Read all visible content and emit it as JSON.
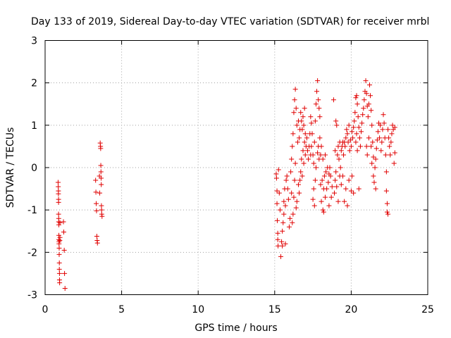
{
  "chart_data": {
    "type": "scatter",
    "title": "Day 133 of 2019, Sidereal Day-to-day VTEC variation (SDTVAR) for receiver mrbl",
    "xlabel": "GPS time / hours",
    "ylabel": "SDTVAR / TECUs",
    "xlim": [
      0,
      25
    ],
    "ylim": [
      -3,
      3
    ],
    "xticks": [
      "0",
      "5",
      "10",
      "15",
      "20",
      "25"
    ],
    "yticks": [
      "-3",
      "-2",
      "-1",
      "0",
      "1",
      "2",
      "3"
    ],
    "grid": true,
    "marker": "+",
    "color": "#e00000",
    "series": [
      {
        "name": "SDTVAR",
        "points": [
          [
            0.85,
            -0.35
          ],
          [
            0.86,
            -0.45
          ],
          [
            0.87,
            -0.55
          ],
          [
            0.87,
            -0.62
          ],
          [
            0.88,
            -0.75
          ],
          [
            0.88,
            -0.82
          ],
          [
            0.88,
            -1.1
          ],
          [
            0.89,
            -1.2
          ],
          [
            0.89,
            -1.28
          ],
          [
            0.9,
            -1.35
          ],
          [
            0.9,
            -1.6
          ],
          [
            0.9,
            -1.7
          ],
          [
            0.91,
            -1.75
          ],
          [
            0.91,
            -1.8
          ],
          [
            0.92,
            -1.9
          ],
          [
            0.92,
            -2.05
          ],
          [
            0.93,
            -2.25
          ],
          [
            0.93,
            -2.4
          ],
          [
            0.94,
            -2.5
          ],
          [
            0.94,
            -2.65
          ],
          [
            0.95,
            -2.72
          ],
          [
            0.96,
            -1.72
          ],
          [
            0.97,
            -1.65
          ],
          [
            0.97,
            -1.3
          ],
          [
            1.2,
            -1.28
          ],
          [
            1.22,
            -1.52
          ],
          [
            1.25,
            -1.95
          ],
          [
            1.27,
            -2.5
          ],
          [
            1.3,
            -2.85
          ],
          [
            3.3,
            -0.3
          ],
          [
            3.32,
            -0.58
          ],
          [
            3.34,
            -0.85
          ],
          [
            3.36,
            -1.02
          ],
          [
            3.38,
            -1.62
          ],
          [
            3.4,
            -1.72
          ],
          [
            3.42,
            -1.78
          ],
          [
            3.6,
            0.58
          ],
          [
            3.62,
            0.5
          ],
          [
            3.63,
            0.45
          ],
          [
            3.64,
            0.05
          ],
          [
            3.65,
            -0.1
          ],
          [
            3.66,
            -0.25
          ],
          [
            3.67,
            -0.4
          ],
          [
            3.68,
            -0.9
          ],
          [
            3.69,
            -1.0
          ],
          [
            3.7,
            -1.1
          ],
          [
            3.72,
            -1.15
          ],
          [
            3.55,
            -0.2
          ],
          [
            3.57,
            -0.6
          ],
          [
            15.1,
            -0.15
          ],
          [
            15.12,
            -0.25
          ],
          [
            15.15,
            -0.55
          ],
          [
            15.15,
            -0.85
          ],
          [
            15.17,
            -1.25
          ],
          [
            15.2,
            -1.55
          ],
          [
            15.2,
            -1.7
          ],
          [
            15.22,
            -1.85
          ],
          [
            15.25,
            -0.05
          ],
          [
            15.3,
            -0.6
          ],
          [
            15.35,
            -1.0
          ],
          [
            15.4,
            -2.1
          ],
          [
            15.45,
            -1.75
          ],
          [
            15.5,
            -1.5
          ],
          [
            15.5,
            -1.85
          ],
          [
            15.55,
            -1.3
          ],
          [
            15.6,
            -1.1
          ],
          [
            15.6,
            -0.8
          ],
          [
            15.65,
            -0.5
          ],
          [
            15.7,
            -0.9
          ],
          [
            15.7,
            -1.8
          ],
          [
            15.75,
            -0.3
          ],
          [
            15.8,
            -0.2
          ],
          [
            15.85,
            -0.5
          ],
          [
            15.9,
            -0.75
          ],
          [
            15.95,
            -1.4
          ],
          [
            16.0,
            -1.2
          ],
          [
            16.05,
            -0.1
          ],
          [
            16.1,
            0.2
          ],
          [
            16.1,
            -0.6
          ],
          [
            16.15,
            0.5
          ],
          [
            16.15,
            -1.3
          ],
          [
            16.2,
            0.8
          ],
          [
            16.2,
            -1.1
          ],
          [
            16.25,
            1.3
          ],
          [
            16.25,
            -0.7
          ],
          [
            16.3,
            1.6
          ],
          [
            16.3,
            -0.3
          ],
          [
            16.35,
            1.85
          ],
          [
            16.35,
            0.1
          ],
          [
            16.4,
            1.4
          ],
          [
            16.4,
            -0.95
          ],
          [
            16.45,
            1.0
          ],
          [
            16.45,
            -0.8
          ],
          [
            16.5,
            0.6
          ],
          [
            16.55,
            1.1
          ],
          [
            16.55,
            -0.4
          ],
          [
            16.6,
            0.7
          ],
          [
            16.6,
            -0.6
          ],
          [
            16.65,
            0.9
          ],
          [
            16.65,
            -0.3
          ],
          [
            16.7,
            1.3
          ],
          [
            16.7,
            -0.1
          ],
          [
            16.75,
            1.1
          ],
          [
            16.75,
            0.2
          ],
          [
            16.8,
            0.9
          ],
          [
            16.8,
            -0.2
          ],
          [
            16.85,
            1.2
          ],
          [
            16.85,
            0.4
          ],
          [
            16.9,
            1.0
          ],
          [
            16.9,
            0.1
          ],
          [
            16.95,
            1.4
          ],
          [
            16.95,
            0.6
          ],
          [
            17.0,
            0.8
          ],
          [
            17.0,
            0.3
          ],
          [
            17.05,
            0.5
          ],
          [
            17.1,
            0.7
          ],
          [
            17.15,
            0.4
          ],
          [
            17.2,
            0.2
          ],
          [
            17.25,
            0.5
          ],
          [
            17.3,
            0.8
          ],
          [
            17.35,
            1.2
          ],
          [
            17.35,
            0.3
          ],
          [
            17.4,
            1.05
          ],
          [
            17.4,
            0.5
          ],
          [
            17.45,
            0.8
          ],
          [
            17.5,
            0.3
          ],
          [
            17.5,
            -0.75
          ],
          [
            17.55,
            0.1
          ],
          [
            17.55,
            -0.5
          ],
          [
            17.6,
            0.6
          ],
          [
            17.6,
            -0.9
          ],
          [
            17.65,
            1.1
          ],
          [
            17.65,
            -0.3
          ],
          [
            17.7,
            1.5
          ],
          [
            17.7,
            0.0
          ],
          [
            17.75,
            1.8
          ],
          [
            17.8,
            2.05
          ],
          [
            17.8,
            0.35
          ],
          [
            17.85,
            1.6
          ],
          [
            17.85,
            0.5
          ],
          [
            17.9,
            1.4
          ],
          [
            17.9,
            0.2
          ],
          [
            17.95,
            1.2
          ],
          [
            17.95,
            0.7
          ],
          [
            18.0,
            0.3
          ],
          [
            18.0,
            -0.4
          ],
          [
            18.05,
            0.5
          ],
          [
            18.05,
            -0.8
          ],
          [
            18.1,
            -0.3
          ],
          [
            18.15,
            0.2
          ],
          [
            18.15,
            -1.0
          ],
          [
            18.2,
            -0.5
          ],
          [
            18.2,
            -1.05
          ],
          [
            18.25,
            -0.2
          ],
          [
            18.3,
            0.3
          ],
          [
            18.3,
            -0.7
          ],
          [
            18.35,
            -0.1
          ],
          [
            18.4,
            -0.5
          ],
          [
            18.45,
            0.0
          ],
          [
            18.5,
            -0.35
          ],
          [
            18.55,
            -0.9
          ],
          [
            18.55,
            -0.15
          ],
          [
            18.6,
            0.0
          ],
          [
            18.65,
            -0.2
          ],
          [
            18.7,
            -0.7
          ],
          [
            18.75,
            -0.45
          ],
          [
            18.85,
            1.6
          ],
          [
            18.9,
            -0.6
          ],
          [
            18.95,
            0.4
          ],
          [
            18.95,
            -0.3
          ],
          [
            19.0,
            1.1
          ],
          [
            19.0,
            -0.1
          ],
          [
            19.05,
            1.0
          ],
          [
            19.05,
            -0.45
          ],
          [
            19.1,
            0.3
          ],
          [
            19.15,
            0.5
          ],
          [
            19.15,
            -0.8
          ],
          [
            19.2,
            0.2
          ],
          [
            19.25,
            0.6
          ],
          [
            19.25,
            -0.2
          ],
          [
            19.3,
            0.0
          ],
          [
            19.35,
            0.4
          ],
          [
            19.35,
            -0.4
          ],
          [
            19.4,
            0.5
          ],
          [
            19.45,
            0.6
          ],
          [
            19.45,
            -0.2
          ],
          [
            19.5,
            0.3
          ],
          [
            19.55,
            0.6
          ],
          [
            19.55,
            -0.8
          ],
          [
            19.6,
            0.5
          ],
          [
            19.65,
            0.7
          ],
          [
            19.65,
            -0.5
          ],
          [
            19.7,
            0.9
          ],
          [
            19.75,
            0.8
          ],
          [
            19.75,
            -0.9
          ],
          [
            19.8,
            0.6
          ],
          [
            19.85,
            1.0
          ],
          [
            19.85,
            -0.3
          ],
          [
            19.9,
            0.4
          ],
          [
            19.95,
            0.65
          ],
          [
            20.0,
            0.5
          ],
          [
            20.0,
            -0.55
          ],
          [
            20.05,
            0.85
          ],
          [
            20.05,
            -0.2
          ],
          [
            20.1,
            0.7
          ],
          [
            20.15,
            0.95
          ],
          [
            20.15,
            -0.6
          ],
          [
            20.2,
            1.1
          ],
          [
            20.25,
            1.3
          ],
          [
            20.3,
            1.65
          ],
          [
            20.3,
            0.6
          ],
          [
            20.35,
            1.7
          ],
          [
            20.35,
            0.8
          ],
          [
            20.4,
            1.5
          ],
          [
            20.4,
            0.4
          ],
          [
            20.45,
            1.2
          ],
          [
            20.5,
            0.95
          ],
          [
            20.5,
            -0.5
          ],
          [
            20.55,
            0.7
          ],
          [
            20.6,
            0.5
          ],
          [
            20.65,
            0.85
          ],
          [
            20.7,
            1.05
          ],
          [
            20.75,
            1.25
          ],
          [
            20.8,
            1.4
          ],
          [
            20.85,
            1.6
          ],
          [
            20.9,
            1.8
          ],
          [
            20.95,
            2.05
          ],
          [
            21.0,
            1.75
          ],
          [
            21.0,
            0.5
          ],
          [
            21.05,
            1.45
          ],
          [
            21.05,
            0.3
          ],
          [
            21.1,
            1.2
          ],
          [
            21.15,
            1.5
          ],
          [
            21.15,
            0.7
          ],
          [
            21.2,
            1.95
          ],
          [
            21.25,
            1.7
          ],
          [
            21.3,
            1.35
          ],
          [
            21.3,
            0.5
          ],
          [
            21.35,
            1.0
          ],
          [
            21.35,
            0.1
          ],
          [
            21.4,
            0.6
          ],
          [
            21.45,
            0.25
          ],
          [
            21.45,
            -0.2
          ],
          [
            21.5,
            -0.35
          ],
          [
            21.55,
            0.0
          ],
          [
            21.6,
            0.2
          ],
          [
            21.6,
            -0.5
          ],
          [
            21.65,
            0.45
          ],
          [
            21.7,
            0.65
          ],
          [
            21.75,
            0.85
          ],
          [
            21.8,
            1.05
          ],
          [
            21.85,
            0.7
          ],
          [
            21.9,
            1.0
          ],
          [
            21.95,
            0.4
          ],
          [
            22.0,
            0.6
          ],
          [
            22.05,
            0.9
          ],
          [
            22.1,
            1.25
          ],
          [
            22.15,
            1.05
          ],
          [
            22.2,
            0.7
          ],
          [
            22.25,
            0.3
          ],
          [
            22.3,
            -0.1
          ],
          [
            22.3,
            -0.55
          ],
          [
            22.35,
            -0.85
          ],
          [
            22.35,
            -1.05
          ],
          [
            22.4,
            -1.1
          ],
          [
            22.4,
            0.9
          ],
          [
            22.45,
            0.7
          ],
          [
            22.5,
            0.5
          ],
          [
            22.55,
            0.3
          ],
          [
            22.6,
            0.6
          ],
          [
            22.65,
            0.8
          ],
          [
            22.7,
            1.0
          ],
          [
            22.75,
            0.9
          ],
          [
            22.8,
            0.1
          ],
          [
            22.85,
            0.35
          ],
          [
            22.85,
            0.95
          ]
        ]
      }
    ]
  }
}
